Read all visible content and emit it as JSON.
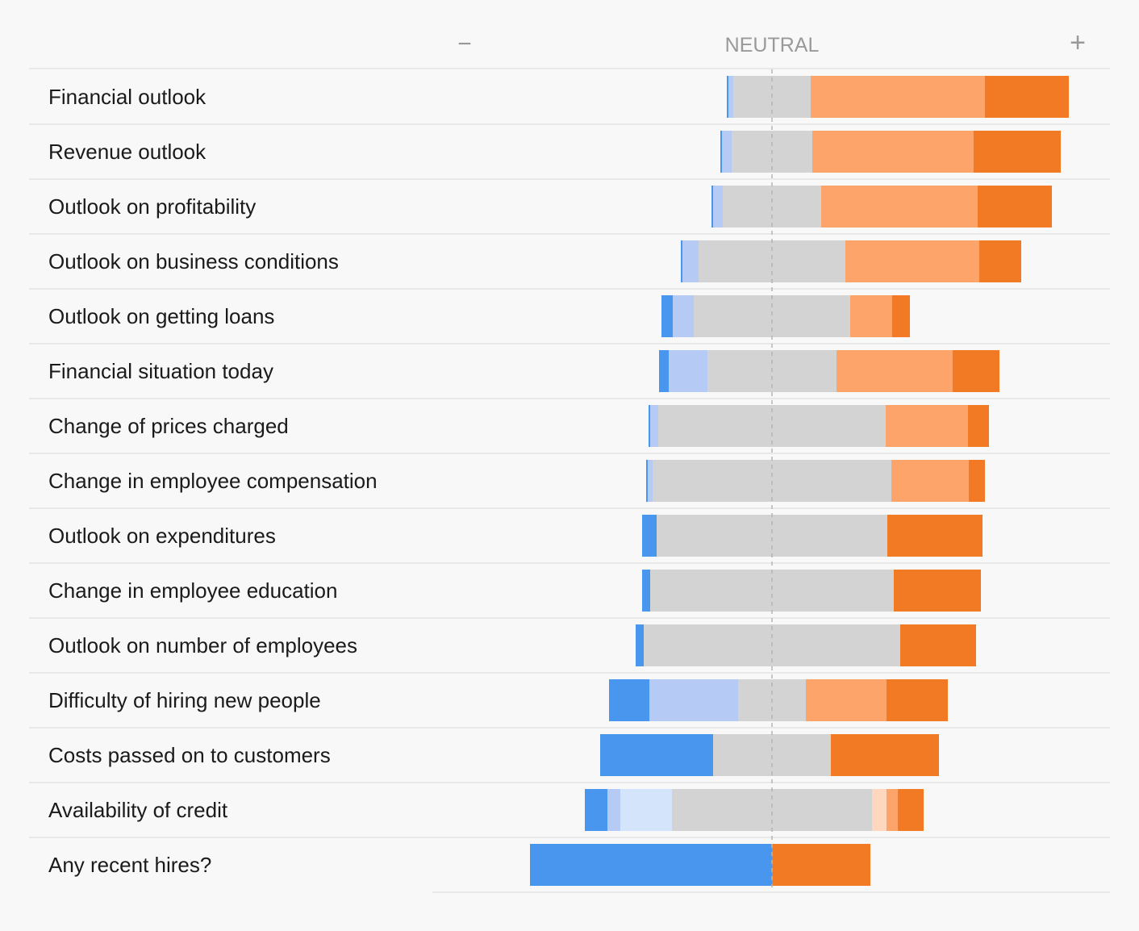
{
  "chart_data": {
    "type": "bar",
    "orientation": "horizontal",
    "stacking": "diverging",
    "header": {
      "negative_symbol": "−",
      "neutral_label": "NEUTRAL",
      "positive_symbol": "+"
    },
    "segment_order": [
      "very_negative",
      "negative",
      "slightly_negative",
      "neutral",
      "slightly_positive",
      "positive",
      "very_positive"
    ],
    "colors": {
      "very_negative": "#4896ee",
      "negative": "#b5cbf5",
      "slightly_negative": "#d4e4fb",
      "neutral": "#d3d3d3",
      "slightly_positive": "#ffd7bf",
      "positive": "#fda46b",
      "very_positive": "#f27a24"
    },
    "rows": [
      {
        "label": "Financial outlook",
        "values": {
          "very_negative": 0.5,
          "negative": 1.5,
          "slightly_negative": 0,
          "neutral": 24,
          "slightly_positive": 0,
          "positive": 54,
          "very_positive": 26
        }
      },
      {
        "label": "Revenue outlook",
        "values": {
          "very_negative": 0.5,
          "negative": 3,
          "slightly_negative": 0,
          "neutral": 25,
          "slightly_positive": 0,
          "positive": 50,
          "very_positive": 27
        }
      },
      {
        "label": "Outlook on profitability",
        "values": {
          "very_negative": 0.5,
          "negative": 3,
          "slightly_negative": 0,
          "neutral": 30.5,
          "slightly_positive": 0,
          "positive": 48.5,
          "very_positive": 23
        }
      },
      {
        "label": "Outlook on business conditions",
        "values": {
          "very_negative": 0.5,
          "negative": 5,
          "slightly_negative": 0,
          "neutral": 45.5,
          "slightly_positive": 0,
          "positive": 41.5,
          "very_positive": 13
        }
      },
      {
        "label": "Outlook on getting loans",
        "values": {
          "very_negative": 3.5,
          "negative": 6.5,
          "slightly_negative": 0,
          "neutral": 48.5,
          "slightly_positive": 0,
          "positive": 13,
          "very_positive": 5.5
        }
      },
      {
        "label": "Financial situation today",
        "values": {
          "very_negative": 3,
          "negative": 12,
          "slightly_negative": 0,
          "neutral": 40,
          "slightly_positive": 0,
          "positive": 36,
          "very_positive": 14.5
        }
      },
      {
        "label": "Change of prices charged",
        "values": {
          "very_negative": 0.5,
          "negative": 2.5,
          "slightly_negative": 0,
          "neutral": 70.5,
          "slightly_positive": 0,
          "positive": 25.5,
          "very_positive": 6.5
        }
      },
      {
        "label": "Change in employee compensation",
        "values": {
          "very_negative": 0.5,
          "negative": 1.5,
          "slightly_negative": 0,
          "neutral": 74,
          "slightly_positive": 0,
          "positive": 24,
          "very_positive": 5
        }
      },
      {
        "label": "Outlook on expenditures",
        "values": {
          "very_negative": 4.5,
          "negative": 0,
          "slightly_negative": 0,
          "neutral": 71.5,
          "slightly_positive": 0,
          "positive": 0,
          "very_positive": 29.5
        }
      },
      {
        "label": "Change in employee education",
        "values": {
          "very_negative": 2.5,
          "negative": 0,
          "slightly_negative": 0,
          "neutral": 75.5,
          "slightly_positive": 0,
          "positive": 0,
          "very_positive": 27
        }
      },
      {
        "label": "Outlook on number of employees",
        "values": {
          "very_negative": 2.5,
          "negative": 0,
          "slightly_negative": 0,
          "neutral": 79.5,
          "slightly_positive": 0,
          "positive": 0,
          "very_positive": 23.5
        }
      },
      {
        "label": "Difficulty of hiring new people",
        "values": {
          "very_negative": 12.5,
          "negative": 27.5,
          "slightly_negative": 0,
          "neutral": 21,
          "slightly_positive": 0,
          "positive": 25,
          "very_positive": 19
        }
      },
      {
        "label": "Costs passed on to customers",
        "values": {
          "very_negative": 35,
          "negative": 0,
          "slightly_negative": 0,
          "neutral": 36.5,
          "slightly_positive": 0,
          "positive": 0,
          "very_positive": 33.5
        }
      },
      {
        "label": "Availability of credit",
        "values": {
          "very_negative": 7,
          "negative": 4,
          "slightly_negative": 16,
          "neutral": 62,
          "slightly_positive": 4.5,
          "positive": 3.5,
          "very_positive": 8
        }
      },
      {
        "label": "Any recent hires?",
        "values": {
          "very_negative": 75,
          "negative": 0,
          "slightly_negative": 0,
          "neutral": 0,
          "slightly_positive": 0,
          "positive": 0,
          "very_positive": 30.5
        }
      }
    ]
  }
}
